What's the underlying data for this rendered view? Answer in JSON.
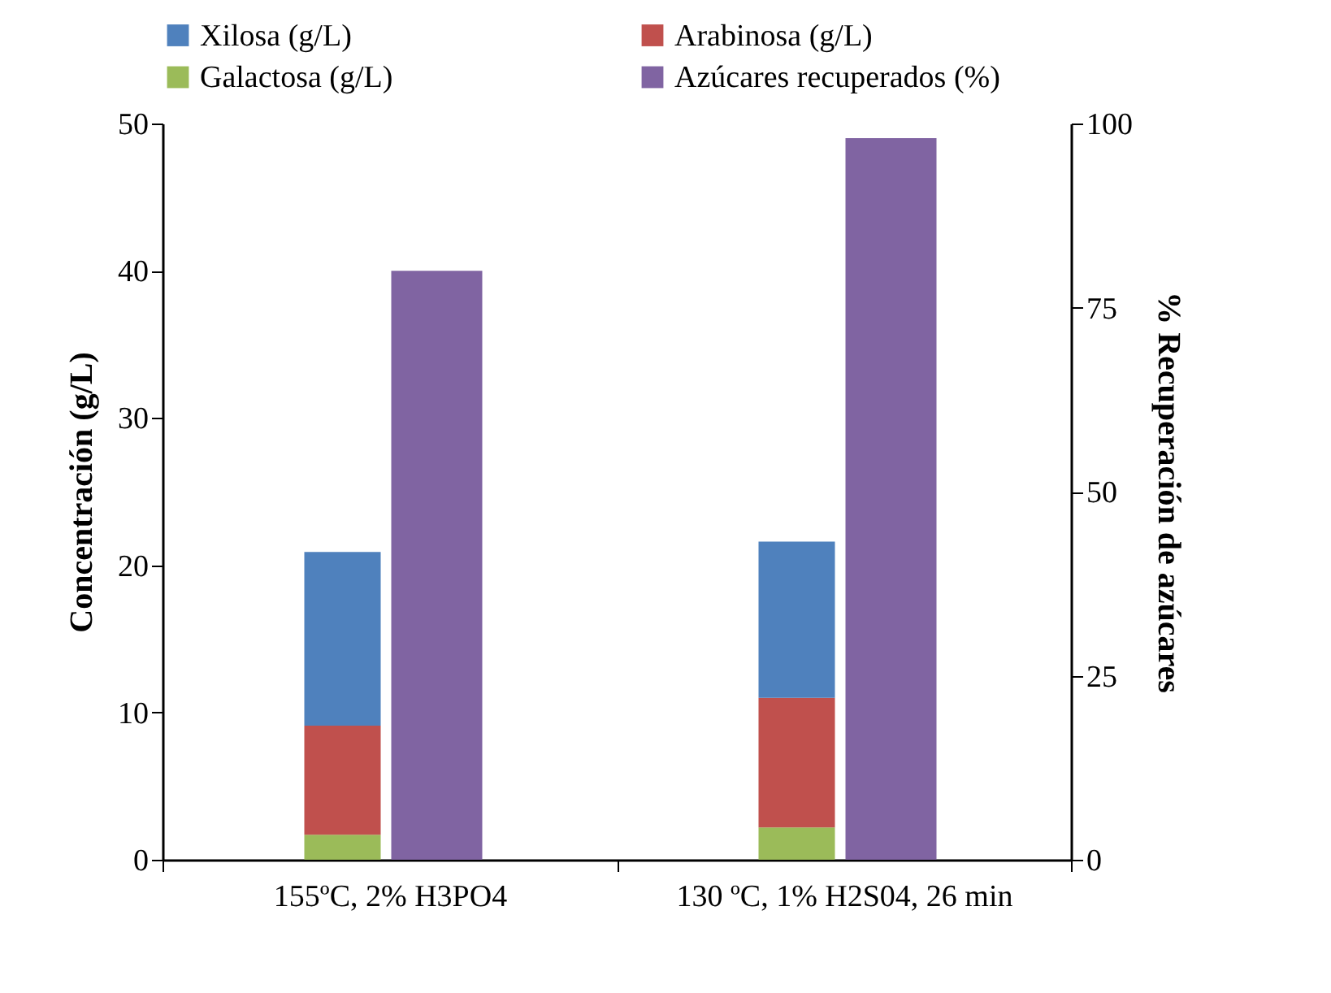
{
  "chart_data": {
    "type": "bar",
    "stacked": true,
    "categories": [
      "155ºC, 2% H3PO4",
      "130 ºC, 1% H2S04, 26 min"
    ],
    "ylabel": "Concentración  (g/L)",
    "y2label": "% Recuperación de azúcares",
    "ylim": [
      0,
      50
    ],
    "yticks": [
      0,
      10,
      20,
      30,
      40,
      50
    ],
    "y2lim": [
      0,
      100
    ],
    "y2ticks": [
      0,
      25,
      50,
      75,
      100
    ],
    "grid": false,
    "legend": "top",
    "series": [
      {
        "name": "Galactosa (g/L)",
        "color": "#9bbb59",
        "values": [
          1.7,
          2.2
        ]
      },
      {
        "name": "Arabinosa (g/L)",
        "color": "#c0504d",
        "values": [
          7.4,
          8.8
        ]
      },
      {
        "name": "Xilosa (g/L)",
        "color": "#4f81bd",
        "values": [
          11.8,
          10.6
        ]
      },
      {
        "name": "Azúcares recuperados (%)",
        "color": "#8064a2",
        "values": [
          80,
          98
        ],
        "axis": "y2"
      }
    ]
  }
}
